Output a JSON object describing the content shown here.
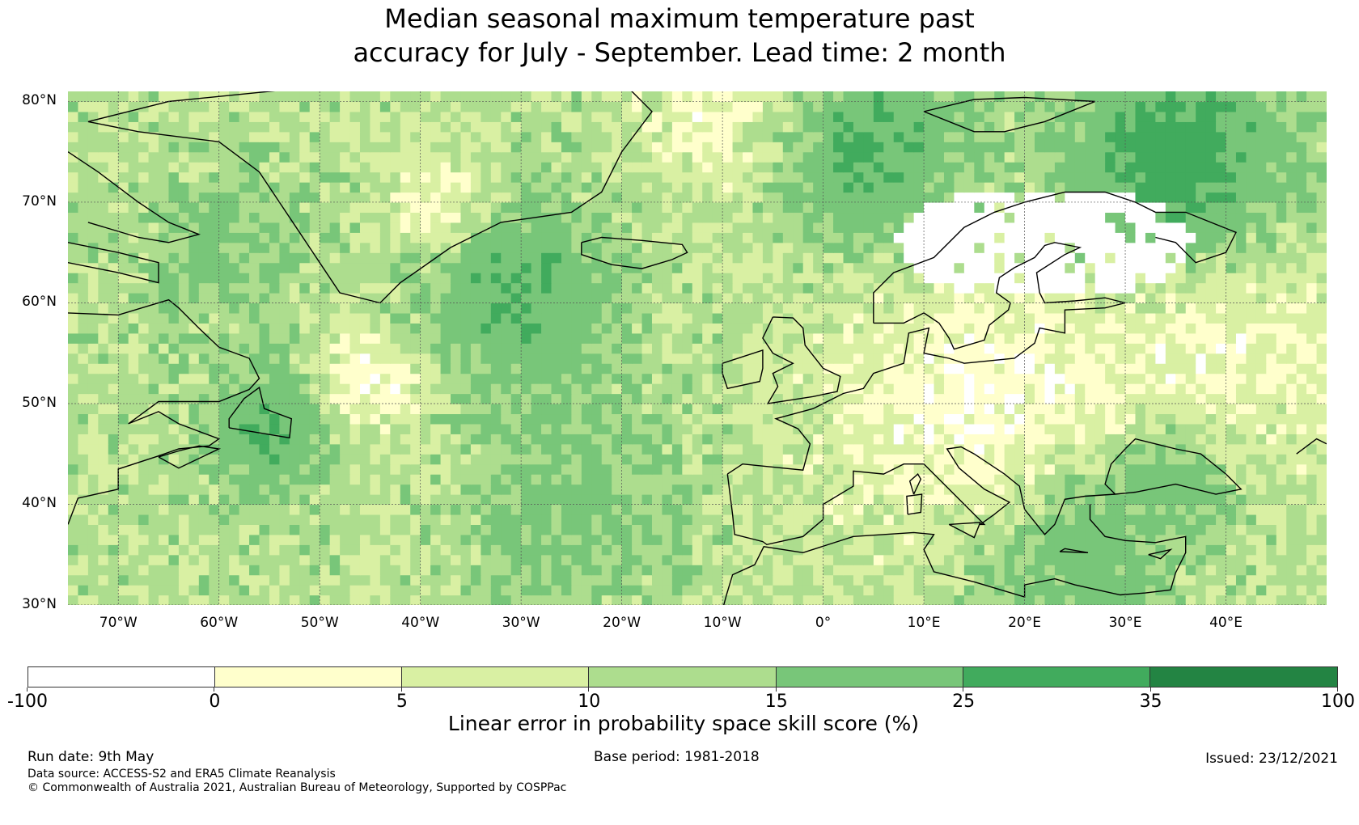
{
  "title": {
    "line1": "Median seasonal maximum temperature past",
    "line2": "accuracy for July - September. Lead time: 2 month"
  },
  "map": {
    "lon_range": [
      -75,
      50
    ],
    "lat_range": [
      30,
      81
    ],
    "lat_labels": [
      "80°N",
      "70°N",
      "60°N",
      "50°N",
      "40°N",
      "30°N"
    ],
    "lat_values": [
      80,
      70,
      60,
      50,
      40,
      30
    ],
    "lon_labels": [
      "70°W",
      "60°W",
      "50°W",
      "40°W",
      "30°W",
      "20°W",
      "10°W",
      "0°",
      "10°E",
      "20°E",
      "30°E",
      "40°E"
    ],
    "lon_values": [
      -70,
      -60,
      -50,
      -40,
      -30,
      -20,
      -10,
      0,
      10,
      20,
      30,
      40
    ]
  },
  "colorbar": {
    "bounds": [
      "-100",
      "0",
      "5",
      "10",
      "15",
      "25",
      "35",
      "100"
    ],
    "colors": [
      "#ffffff",
      "#ffffcc",
      "#d9f0a3",
      "#addd8e",
      "#78c679",
      "#41ab5d",
      "#238443"
    ],
    "label": "Linear error in probability space skill score (%)"
  },
  "footer": {
    "run_date": "Run date: 9th May",
    "base_period": "Base period: 1981-2018",
    "issued": "Issued: 23/12/2021",
    "data_source": "Data source: ACCESS-S2 and ERA5 Climate Reanalysis",
    "copyright": "© Commonwealth of Australia 2021, Australian Bureau of Meteorology, Supported by COSPPac"
  }
}
